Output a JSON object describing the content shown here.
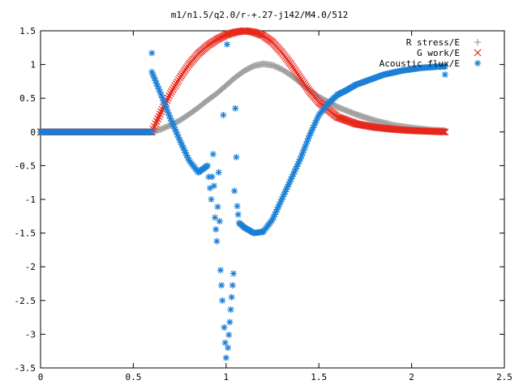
{
  "chart_data": {
    "type": "scatter",
    "title": "m1/n1.5/q2.0/r-+.27-j142/M4.0/512",
    "xlabel": "",
    "ylabel": "",
    "xlim": [
      0,
      2.5
    ],
    "ylim": [
      -3.5,
      1.5
    ],
    "xticks": [
      "0",
      "0.5",
      "1",
      "1.5",
      "2",
      "2.5"
    ],
    "yticks": [
      "1.5",
      "1",
      "0.5",
      "0",
      "-0.5",
      "-1",
      "-1.5",
      "-2",
      "-2.5",
      "-3",
      "-3.5"
    ],
    "grid": false,
    "legend_position": "top-right",
    "series": [
      {
        "name": "R stress/E",
        "marker": "plus",
        "color": "#a0a0a0",
        "x": [
          0.0,
          0.3,
          0.6,
          0.65,
          0.7,
          0.75,
          0.8,
          0.85,
          0.9,
          0.95,
          1.0,
          1.05,
          1.1,
          1.15,
          1.2,
          1.25,
          1.3,
          1.35,
          1.4,
          1.45,
          1.5,
          1.6,
          1.7,
          1.8,
          1.9,
          2.0,
          2.1,
          2.18
        ],
        "y": [
          0.0,
          0.0,
          0.0,
          0.04,
          0.1,
          0.17,
          0.26,
          0.36,
          0.47,
          0.57,
          0.69,
          0.81,
          0.91,
          0.98,
          1.01,
          0.99,
          0.93,
          0.84,
          0.73,
          0.62,
          0.52,
          0.37,
          0.26,
          0.17,
          0.1,
          0.06,
          0.03,
          0.02
        ]
      },
      {
        "name": "G work/E",
        "marker": "x",
        "color": "#e8281c",
        "x": [
          0.0,
          0.3,
          0.6,
          0.62,
          0.65,
          0.7,
          0.75,
          0.8,
          0.85,
          0.9,
          0.95,
          1.0,
          1.05,
          1.1,
          1.15,
          1.2,
          1.25,
          1.3,
          1.35,
          1.4,
          1.45,
          1.5,
          1.6,
          1.7,
          1.8,
          1.9,
          2.0,
          2.1,
          2.18
        ],
        "y": [
          0.0,
          0.0,
          0.0,
          0.12,
          0.3,
          0.57,
          0.8,
          1.0,
          1.16,
          1.28,
          1.37,
          1.44,
          1.48,
          1.5,
          1.48,
          1.43,
          1.33,
          1.18,
          1.0,
          0.8,
          0.6,
          0.44,
          0.22,
          0.12,
          0.07,
          0.04,
          0.02,
          0.01,
          0.0
        ]
      },
      {
        "name": "Acoustic flux/E",
        "marker": "star",
        "color": "#1a7fd6",
        "x": [
          0.0,
          0.3,
          0.6,
          0.6,
          0.6,
          0.65,
          0.7,
          0.75,
          0.8,
          0.85,
          0.9,
          0.92,
          0.93,
          0.94,
          0.95,
          0.96,
          0.97,
          0.98,
          0.985,
          0.99,
          1.0,
          1.005,
          1.01,
          1.02,
          1.03,
          1.04,
          1.05,
          1.06,
          1.07,
          1.1,
          1.15,
          1.2,
          1.25,
          1.3,
          1.35,
          1.4,
          1.45,
          1.5,
          1.55,
          1.6,
          1.65,
          1.7,
          1.75,
          1.8,
          1.85,
          1.9,
          1.95,
          2.0,
          2.05,
          2.1,
          2.15,
          2.18,
          2.18
        ],
        "y": [
          0.0,
          0.0,
          0.0,
          1.17,
          0.89,
          0.55,
          0.2,
          -0.12,
          -0.42,
          -0.6,
          -0.5,
          -1.0,
          -0.33,
          -1.27,
          -1.62,
          -0.6,
          -2.05,
          -2.5,
          0.25,
          -2.9,
          -3.35,
          1.3,
          -3.2,
          -2.82,
          -2.45,
          -2.1,
          0.35,
          -1.1,
          -1.35,
          -1.42,
          -1.5,
          -1.48,
          -1.3,
          -1.0,
          -0.7,
          -0.4,
          -0.05,
          0.25,
          0.42,
          0.55,
          0.62,
          0.7,
          0.75,
          0.8,
          0.85,
          0.88,
          0.91,
          0.93,
          0.95,
          0.96,
          0.97,
          0.97,
          0.85
        ]
      }
    ]
  }
}
